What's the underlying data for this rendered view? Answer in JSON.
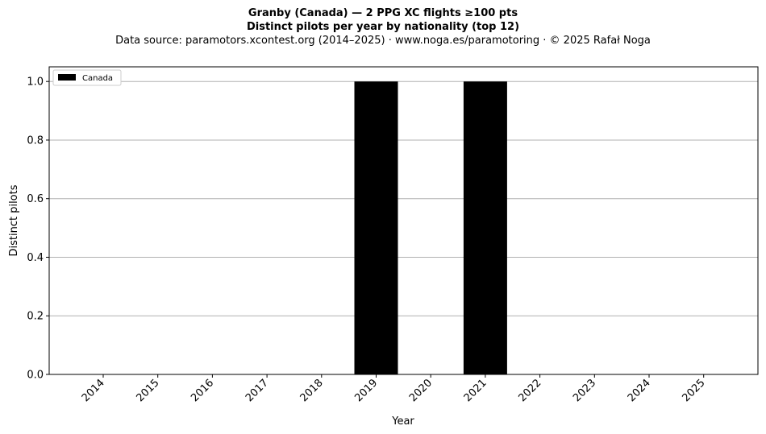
{
  "title": {
    "line1": "Granby (Canada)  —  2 PPG XC flights ≥100 pts",
    "line2": "Distinct pilots per year by nationality (top 12)",
    "line3": "Data source: paramotors.xcontest.org (2014–2025)  ·  www.noga.es/paramotoring  ·  © 2025 Rafał Noga"
  },
  "chart_data": {
    "type": "bar",
    "stacked": true,
    "categories": [
      "2014",
      "2015",
      "2016",
      "2017",
      "2018",
      "2019",
      "2020",
      "2021",
      "2022",
      "2023",
      "2024",
      "2025"
    ],
    "series": [
      {
        "name": "Canada",
        "color": "#000000",
        "values": [
          0,
          0,
          0,
          0,
          0,
          1,
          0,
          1,
          0,
          0,
          0,
          0
        ]
      }
    ],
    "xlabel": "Year",
    "ylabel": "Distinct pilots",
    "ylim": [
      0,
      1.05
    ],
    "yticks": [
      "0.0",
      "0.2",
      "0.4",
      "0.6",
      "0.8",
      "1.0"
    ],
    "grid": "y",
    "legend_position": "top-left"
  }
}
